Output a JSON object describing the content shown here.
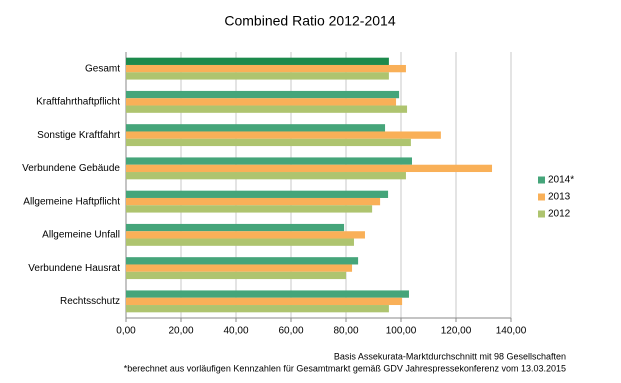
{
  "chart_data": {
    "type": "hbar",
    "title": "Combined Ratio 2012-2014",
    "categories": [
      "Gesamt",
      "Kraftfahrthaftpflicht",
      "Sonstige Kraftfahrt",
      "Verbundene Gebäude",
      "Allgemeine Haftpflicht",
      "Allgemeine Unfall",
      "Verbundene Hausrat",
      "Rechtsschutz"
    ],
    "series": [
      {
        "name": "2014*",
        "color": "#45a57a",
        "colors": [
          "#1c8a4c",
          "#45a57a",
          "#45a57a",
          "#45a57a",
          "#45a57a",
          "#45a57a",
          "#45a57a",
          "#45a57a"
        ],
        "values": [
          95.6,
          99.3,
          94.2,
          104.0,
          95.3,
          79.3,
          84.4,
          102.9
        ]
      },
      {
        "name": "2013",
        "color": "#f9b058",
        "values": [
          101.8,
          98.2,
          114.5,
          133.1,
          92.4,
          86.9,
          82.2,
          100.4
        ]
      },
      {
        "name": "2012",
        "color": "#aec46f",
        "values": [
          95.6,
          102.2,
          103.6,
          101.8,
          89.5,
          82.9,
          80.0,
          95.6
        ]
      }
    ],
    "xlim": [
      0,
      140
    ],
    "xticks": [
      {
        "value": 0,
        "label": "0,00"
      },
      {
        "value": 20,
        "label": "20,00"
      },
      {
        "value": 40,
        "label": "40,00"
      },
      {
        "value": 60,
        "label": "60,00"
      },
      {
        "value": 80,
        "label": "80,00"
      },
      {
        "value": 100,
        "label": "100,00"
      },
      {
        "value": 120,
        "label": "120,00"
      },
      {
        "value": 140,
        "label": "140,00"
      }
    ],
    "grid": true,
    "legend": "right",
    "notes": [
      "Basis Assekurata-Marktdurchschnitt mit 98 Gesellschaften",
      "*berechnet aus vorläufigen Kennzahlen für Gesamtmarkt gemäß GDV Jahrespressekonferenz vom 13.03.2015"
    ]
  }
}
